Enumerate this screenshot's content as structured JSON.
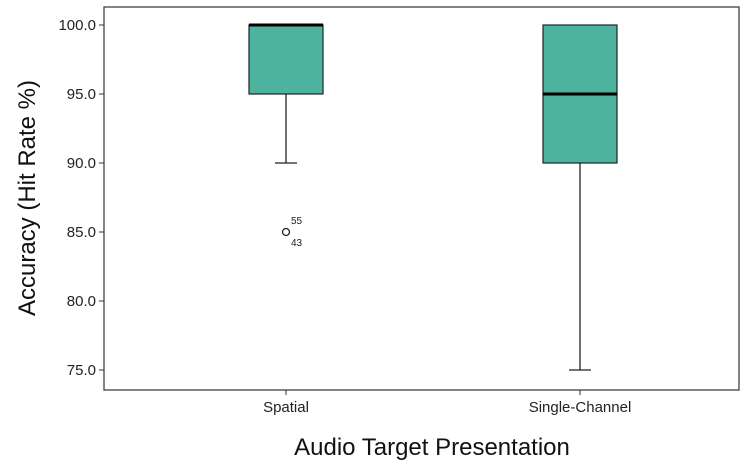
{
  "chart_data": {
    "type": "boxplot",
    "xlabel": "Audio Target Presentation",
    "ylabel": "Accuracy (Hit Rate %)",
    "ylim": [
      74.0,
      101.5
    ],
    "yticks": [
      "75.0",
      "80.0",
      "85.0",
      "90.0",
      "95.0",
      "100.0"
    ],
    "grid": false,
    "box_color": "#4DB39E",
    "categories": [
      "Spatial",
      "Single-Channel"
    ],
    "boxes": [
      {
        "category": "Spatial",
        "whisker_low": 90.0,
        "q1": 95.0,
        "median": 100.0,
        "q3": 100.0,
        "whisker_high": 100.0,
        "outliers": [
          {
            "value": 85.0,
            "labels": [
              "55",
              "43"
            ]
          }
        ]
      },
      {
        "category": "Single-Channel",
        "whisker_low": 75.0,
        "q1": 90.0,
        "median": 95.0,
        "q3": 100.0,
        "whisker_high": 100.0,
        "outliers": []
      }
    ]
  }
}
